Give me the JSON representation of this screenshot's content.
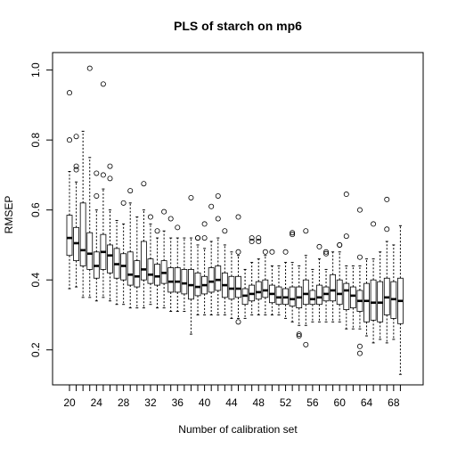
{
  "chart_data": {
    "type": "boxplot",
    "title": "PLS of starch on mp6",
    "xlabel": "Number of calibration set",
    "ylabel": "RMSEP",
    "ylim": [
      0.1,
      1.05
    ],
    "y_ticks": [
      0.2,
      0.4,
      0.6,
      0.8,
      1.0
    ],
    "y_tick_labels": [
      "0.2",
      "0.4",
      "0.6",
      "0.8",
      "1.0"
    ],
    "x_tick_labels": [
      "20",
      "24",
      "28",
      "32",
      "36",
      "40",
      "44",
      "48",
      "52",
      "56",
      "60",
      "64",
      "68"
    ],
    "x_tick_values": [
      20,
      24,
      28,
      32,
      36,
      40,
      44,
      48,
      52,
      56,
      60,
      64,
      68
    ],
    "grid": false,
    "categories": [
      20,
      21,
      22,
      23,
      24,
      25,
      26,
      27,
      28,
      29,
      30,
      31,
      32,
      33,
      34,
      35,
      36,
      37,
      38,
      39,
      40,
      41,
      42,
      43,
      44,
      45,
      46,
      47,
      48,
      49,
      50,
      51,
      52,
      53,
      54,
      55,
      56,
      57,
      58,
      59,
      60,
      61,
      62,
      63,
      64,
      65,
      66,
      67,
      68,
      69
    ],
    "boxes": [
      {
        "x": 20,
        "min": 0.375,
        "q1": 0.47,
        "median": 0.52,
        "q3": 0.585,
        "max": 0.71,
        "outliers": [
          0.8,
          0.935
        ]
      },
      {
        "x": 21,
        "min": 0.38,
        "q1": 0.455,
        "median": 0.505,
        "q3": 0.55,
        "max": 0.68,
        "outliers": [
          0.715,
          0.725,
          0.81
        ]
      },
      {
        "x": 22,
        "min": 0.35,
        "q1": 0.44,
        "median": 0.485,
        "q3": 0.62,
        "max": 0.825,
        "outliers": []
      },
      {
        "x": 23,
        "min": 0.35,
        "q1": 0.43,
        "median": 0.475,
        "q3": 0.535,
        "max": 0.75,
        "outliers": [
          1.005
        ]
      },
      {
        "x": 24,
        "min": 0.34,
        "q1": 0.405,
        "median": 0.44,
        "q3": 0.48,
        "max": 0.6,
        "outliers": [
          0.64,
          0.705
        ]
      },
      {
        "x": 25,
        "min": 0.35,
        "q1": 0.43,
        "median": 0.48,
        "q3": 0.53,
        "max": 0.66,
        "outliers": [
          0.7,
          0.96
        ]
      },
      {
        "x": 26,
        "min": 0.34,
        "q1": 0.42,
        "median": 0.47,
        "q3": 0.5,
        "max": 0.6,
        "outliers": [
          0.69,
          0.725
        ]
      },
      {
        "x": 27,
        "min": 0.33,
        "q1": 0.405,
        "median": 0.445,
        "q3": 0.49,
        "max": 0.57,
        "outliers": []
      },
      {
        "x": 28,
        "min": 0.33,
        "q1": 0.4,
        "median": 0.44,
        "q3": 0.475,
        "max": 0.56,
        "outliers": [
          0.62
        ]
      },
      {
        "x": 29,
        "min": 0.32,
        "q1": 0.385,
        "median": 0.415,
        "q3": 0.48,
        "max": 0.62,
        "outliers": [
          0.655
        ]
      },
      {
        "x": 30,
        "min": 0.32,
        "q1": 0.38,
        "median": 0.41,
        "q3": 0.455,
        "max": 0.58,
        "outliers": []
      },
      {
        "x": 31,
        "min": 0.32,
        "q1": 0.4,
        "median": 0.43,
        "q3": 0.51,
        "max": 0.6,
        "outliers": [
          0.675
        ]
      },
      {
        "x": 32,
        "min": 0.33,
        "q1": 0.39,
        "median": 0.415,
        "q3": 0.46,
        "max": 0.56,
        "outliers": [
          0.58
        ]
      },
      {
        "x": 33,
        "min": 0.32,
        "q1": 0.385,
        "median": 0.41,
        "q3": 0.445,
        "max": 0.52,
        "outliers": [
          0.54
        ]
      },
      {
        "x": 34,
        "min": 0.32,
        "q1": 0.39,
        "median": 0.42,
        "q3": 0.455,
        "max": 0.54,
        "outliers": [
          0.595
        ]
      },
      {
        "x": 35,
        "min": 0.31,
        "q1": 0.365,
        "median": 0.395,
        "q3": 0.435,
        "max": 0.52,
        "outliers": [
          0.575
        ]
      },
      {
        "x": 36,
        "min": 0.31,
        "q1": 0.365,
        "median": 0.395,
        "q3": 0.435,
        "max": 0.52,
        "outliers": [
          0.55
        ]
      },
      {
        "x": 37,
        "min": 0.31,
        "q1": 0.36,
        "median": 0.39,
        "q3": 0.43,
        "max": 0.52,
        "outliers": []
      },
      {
        "x": 38,
        "min": 0.245,
        "q1": 0.345,
        "median": 0.385,
        "q3": 0.43,
        "max": 0.52,
        "outliers": [
          0.635
        ]
      },
      {
        "x": 39,
        "min": 0.3,
        "q1": 0.355,
        "median": 0.38,
        "q3": 0.42,
        "max": 0.5,
        "outliers": [
          0.52,
          0.52
        ]
      },
      {
        "x": 40,
        "min": 0.3,
        "q1": 0.36,
        "median": 0.385,
        "q3": 0.41,
        "max": 0.49,
        "outliers": [
          0.52,
          0.56
        ]
      },
      {
        "x": 41,
        "min": 0.3,
        "q1": 0.365,
        "median": 0.395,
        "q3": 0.435,
        "max": 0.51,
        "outliers": [
          0.61
        ]
      },
      {
        "x": 42,
        "min": 0.3,
        "q1": 0.37,
        "median": 0.4,
        "q3": 0.44,
        "max": 0.52,
        "outliers": [
          0.575,
          0.64
        ]
      },
      {
        "x": 43,
        "min": 0.3,
        "q1": 0.35,
        "median": 0.385,
        "q3": 0.42,
        "max": 0.5,
        "outliers": [
          0.54
        ]
      },
      {
        "x": 44,
        "min": 0.29,
        "q1": 0.345,
        "median": 0.375,
        "q3": 0.41,
        "max": 0.48,
        "outliers": []
      },
      {
        "x": 45,
        "min": 0.29,
        "q1": 0.35,
        "median": 0.375,
        "q3": 0.41,
        "max": 0.47,
        "outliers": [
          0.28,
          0.48,
          0.58
        ]
      },
      {
        "x": 46,
        "min": 0.29,
        "q1": 0.33,
        "median": 0.355,
        "q3": 0.375,
        "max": 0.43,
        "outliers": []
      },
      {
        "x": 47,
        "min": 0.3,
        "q1": 0.34,
        "median": 0.36,
        "q3": 0.385,
        "max": 0.45,
        "outliers": [
          0.51,
          0.52
        ]
      },
      {
        "x": 48,
        "min": 0.3,
        "q1": 0.345,
        "median": 0.365,
        "q3": 0.395,
        "max": 0.46,
        "outliers": [
          0.51,
          0.52
        ]
      },
      {
        "x": 49,
        "min": 0.3,
        "q1": 0.35,
        "median": 0.37,
        "q3": 0.4,
        "max": 0.47,
        "outliers": [
          0.48
        ]
      },
      {
        "x": 50,
        "min": 0.3,
        "q1": 0.335,
        "median": 0.36,
        "q3": 0.385,
        "max": 0.44,
        "outliers": [
          0.48
        ]
      },
      {
        "x": 51,
        "min": 0.3,
        "q1": 0.33,
        "median": 0.35,
        "q3": 0.38,
        "max": 0.44,
        "outliers": []
      },
      {
        "x": 52,
        "min": 0.29,
        "q1": 0.33,
        "median": 0.35,
        "q3": 0.375,
        "max": 0.45,
        "outliers": [
          0.48
        ]
      },
      {
        "x": 53,
        "min": 0.28,
        "q1": 0.325,
        "median": 0.345,
        "q3": 0.38,
        "max": 0.45,
        "outliers": [
          0.53,
          0.535
        ]
      },
      {
        "x": 54,
        "min": 0.27,
        "q1": 0.32,
        "median": 0.35,
        "q3": 0.38,
        "max": 0.44,
        "outliers": [
          0.24,
          0.245
        ]
      },
      {
        "x": 55,
        "min": 0.27,
        "q1": 0.33,
        "median": 0.36,
        "q3": 0.4,
        "max": 0.47,
        "outliers": [
          0.215,
          0.54
        ]
      },
      {
        "x": 56,
        "min": 0.28,
        "q1": 0.33,
        "median": 0.345,
        "q3": 0.37,
        "max": 0.43,
        "outliers": []
      },
      {
        "x": 57,
        "min": 0.28,
        "q1": 0.33,
        "median": 0.35,
        "q3": 0.385,
        "max": 0.46,
        "outliers": [
          0.495
        ]
      },
      {
        "x": 58,
        "min": 0.28,
        "q1": 0.34,
        "median": 0.36,
        "q3": 0.38,
        "max": 0.43,
        "outliers": [
          0.475,
          0.48
        ]
      },
      {
        "x": 59,
        "min": 0.28,
        "q1": 0.34,
        "median": 0.37,
        "q3": 0.415,
        "max": 0.48,
        "outliers": []
      },
      {
        "x": 60,
        "min": 0.28,
        "q1": 0.33,
        "median": 0.36,
        "q3": 0.4,
        "max": 0.48,
        "outliers": [
          0.5,
          0.5
        ]
      },
      {
        "x": 61,
        "min": 0.26,
        "q1": 0.315,
        "median": 0.37,
        "q3": 0.39,
        "max": 0.44,
        "outliers": [
          0.645,
          0.525
        ]
      },
      {
        "x": 62,
        "min": 0.26,
        "q1": 0.32,
        "median": 0.355,
        "q3": 0.38,
        "max": 0.44,
        "outliers": []
      },
      {
        "x": 63,
        "min": 0.26,
        "q1": 0.31,
        "median": 0.34,
        "q3": 0.37,
        "max": 0.44,
        "outliers": [
          0.19,
          0.21,
          0.465,
          0.6
        ]
      },
      {
        "x": 64,
        "min": 0.24,
        "q1": 0.28,
        "median": 0.34,
        "q3": 0.39,
        "max": 0.46,
        "outliers": []
      },
      {
        "x": 65,
        "min": 0.22,
        "q1": 0.285,
        "median": 0.335,
        "q3": 0.4,
        "max": 0.46,
        "outliers": [
          0.56
        ]
      },
      {
        "x": 66,
        "min": 0.23,
        "q1": 0.28,
        "median": 0.335,
        "q3": 0.395,
        "max": 0.48,
        "outliers": []
      },
      {
        "x": 67,
        "min": 0.22,
        "q1": 0.3,
        "median": 0.35,
        "q3": 0.405,
        "max": 0.51,
        "outliers": [
          0.545,
          0.63
        ]
      },
      {
        "x": 68,
        "min": 0.23,
        "q1": 0.29,
        "median": 0.345,
        "q3": 0.395,
        "max": 0.5,
        "outliers": []
      },
      {
        "x": 69,
        "min": 0.13,
        "q1": 0.275,
        "median": 0.34,
        "q3": 0.405,
        "max": 0.555,
        "outliers": []
      }
    ]
  }
}
